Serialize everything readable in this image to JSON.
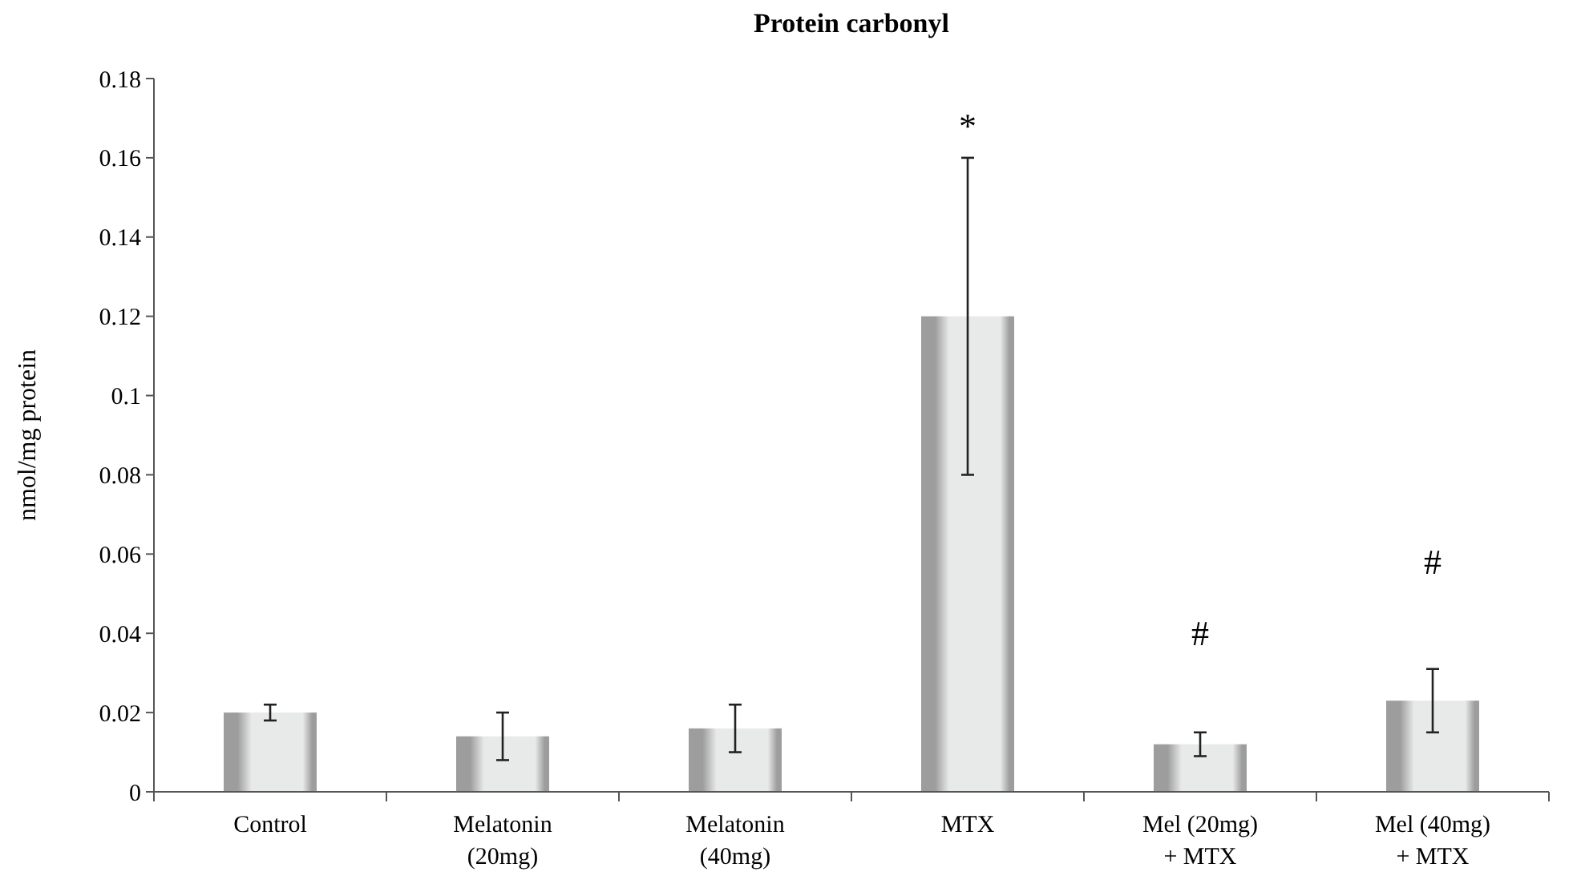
{
  "chart_data": {
    "type": "bar",
    "title": "Protein carbonyl",
    "ylabel": "nmol/mg protein",
    "categories": [
      "Control",
      "Melatonin (20mg)",
      "Melatonin (40mg)",
      "MTX",
      "Mel (20mg) + MTX",
      "Mel (40mg) + MTX"
    ],
    "values": [
      0.02,
      0.014,
      0.016,
      0.12,
      0.012,
      0.023
    ],
    "errors": [
      0.002,
      0.006,
      0.006,
      0.04,
      0.003,
      0.008
    ],
    "color": "#e8e9e9",
    "ylim": [
      0,
      0.18
    ],
    "yticks": [
      0,
      0.02,
      0.04,
      0.06,
      0.08,
      0.1,
      0.12,
      0.14,
      0.16,
      0.18
    ],
    "annotations": [
      "*",
      "#",
      "#"
    ]
  }
}
